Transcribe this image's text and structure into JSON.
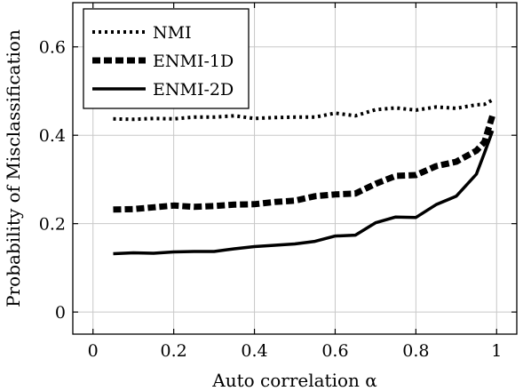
{
  "chart_data": {
    "type": "line",
    "title": "",
    "xlabel": "Auto correlation α",
    "ylabel": "Probability of Misclassification",
    "xlim": [
      -0.05,
      1.05
    ],
    "ylim": [
      -0.05,
      0.7
    ],
    "x_ticks": [
      0,
      0.2,
      0.4,
      0.6,
      0.8,
      1
    ],
    "x_tick_labels": [
      "0",
      "0.2",
      "0.4",
      "0.6",
      "0.8",
      "1"
    ],
    "y_ticks": [
      0,
      0.2,
      0.4,
      0.6
    ],
    "y_tick_labels": [
      "0",
      "0.2",
      "0.4",
      "0.6"
    ],
    "grid": true,
    "legend_position": "top-left",
    "series": [
      {
        "name": "NMI",
        "style": "dotted",
        "x": [
          0.05,
          0.1,
          0.15,
          0.2,
          0.25,
          0.3,
          0.35,
          0.4,
          0.45,
          0.5,
          0.55,
          0.6,
          0.65,
          0.7,
          0.75,
          0.8,
          0.85,
          0.9,
          0.95,
          0.97,
          0.99
        ],
        "values": [
          0.437,
          0.436,
          0.438,
          0.437,
          0.441,
          0.441,
          0.444,
          0.438,
          0.44,
          0.441,
          0.441,
          0.45,
          0.444,
          0.458,
          0.462,
          0.457,
          0.464,
          0.461,
          0.469,
          0.47,
          0.48
        ]
      },
      {
        "name": "ENMI-1D",
        "style": "dashed",
        "x": [
          0.05,
          0.1,
          0.15,
          0.2,
          0.25,
          0.3,
          0.35,
          0.4,
          0.45,
          0.5,
          0.55,
          0.6,
          0.65,
          0.7,
          0.75,
          0.8,
          0.85,
          0.9,
          0.95,
          0.97,
          0.99
        ],
        "values": [
          0.232,
          0.233,
          0.237,
          0.241,
          0.238,
          0.24,
          0.243,
          0.244,
          0.249,
          0.252,
          0.262,
          0.266,
          0.268,
          0.29,
          0.308,
          0.31,
          0.33,
          0.34,
          0.365,
          0.385,
          0.445
        ]
      },
      {
        "name": "ENMI-2D",
        "style": "solid",
        "x": [
          0.05,
          0.1,
          0.15,
          0.2,
          0.25,
          0.3,
          0.35,
          0.4,
          0.45,
          0.5,
          0.55,
          0.6,
          0.65,
          0.7,
          0.75,
          0.8,
          0.85,
          0.9,
          0.95,
          0.97,
          0.99
        ],
        "values": [
          0.132,
          0.134,
          0.133,
          0.136,
          0.137,
          0.137,
          0.143,
          0.148,
          0.151,
          0.154,
          0.16,
          0.172,
          0.174,
          0.202,
          0.215,
          0.214,
          0.243,
          0.262,
          0.312,
          0.36,
          0.41
        ]
      }
    ]
  }
}
